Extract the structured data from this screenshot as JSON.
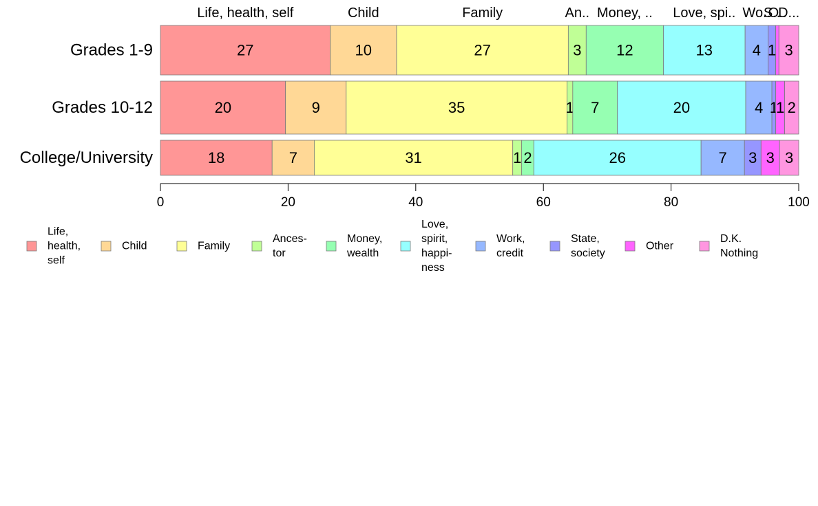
{
  "chart_data": {
    "type": "bar",
    "orientation": "horizontal",
    "stacked": true,
    "xlim": [
      0,
      100
    ],
    "x_ticks": [
      0,
      20,
      40,
      60,
      80,
      100
    ],
    "grid": false,
    "legend_position": "bottom",
    "categories": [
      "Grades 1-9",
      "Grades 10-12",
      "College/University"
    ],
    "column_headers": [
      "Life, health, self",
      "Child",
      "Family",
      "An..",
      "Money, ..",
      "Love, spi..",
      "Wo..",
      "S..",
      "O..",
      "D..."
    ],
    "series": [
      {
        "name": "Life, health, self",
        "legend_lines": [
          "Life,",
          "health,",
          "self"
        ],
        "color": "#ff9696",
        "values": [
          26.6,
          19.6,
          17.5
        ],
        "labels": [
          "27",
          "20",
          "18"
        ]
      },
      {
        "name": "Child",
        "legend_lines": [
          "Child"
        ],
        "color": "#ffd896",
        "values": [
          10.4,
          9.5,
          6.6
        ],
        "labels": [
          "10",
          "9",
          "7"
        ]
      },
      {
        "name": "Family",
        "legend_lines": [
          "Family"
        ],
        "color": "#ffff96",
        "values": [
          26.9,
          34.6,
          31.1
        ],
        "labels": [
          "27",
          "35",
          "31"
        ]
      },
      {
        "name": "Ancestor",
        "legend_lines": [
          "Ances-",
          "tor"
        ],
        "color": "#c0ff96",
        "values": [
          2.8,
          0.9,
          1.4
        ],
        "labels": [
          "3",
          "1",
          "1"
        ]
      },
      {
        "name": "Money, wealth",
        "legend_lines": [
          "Money,",
          "wealth"
        ],
        "color": "#96ffb2",
        "values": [
          12.1,
          7.0,
          1.9
        ],
        "labels": [
          "12",
          "7",
          "2"
        ]
      },
      {
        "name": "Love, spirit, happiness",
        "legend_lines": [
          "Love,",
          "spirit,",
          "happi-",
          "ness"
        ],
        "color": "#96ffff",
        "values": [
          12.8,
          20.1,
          26.2
        ],
        "labels": [
          "13",
          "20",
          "26"
        ]
      },
      {
        "name": "Work, credit",
        "legend_lines": [
          "Work,",
          "credit"
        ],
        "color": "#96b8ff",
        "values": [
          3.6,
          4.1,
          6.8
        ],
        "labels": [
          "4",
          "4",
          "7"
        ]
      },
      {
        "name": "State, society",
        "legend_lines": [
          "State,",
          "society"
        ],
        "color": "#9696ff",
        "values": [
          1.2,
          0.6,
          2.6
        ],
        "labels": [
          "1",
          "1",
          "3"
        ]
      },
      {
        "name": "Other",
        "legend_lines": [
          "Other"
        ],
        "color": "#ff64ff",
        "values": [
          0.5,
          1.4,
          2.9
        ],
        "labels": [
          "",
          "1",
          "3"
        ]
      },
      {
        "name": "D.K. Nothing",
        "legend_lines": [
          "D.K.",
          "Nothing"
        ],
        "color": "#ff96e0",
        "values": [
          3.1,
          2.2,
          3.0
        ],
        "labels": [
          "3",
          "2",
          "3"
        ]
      }
    ]
  }
}
